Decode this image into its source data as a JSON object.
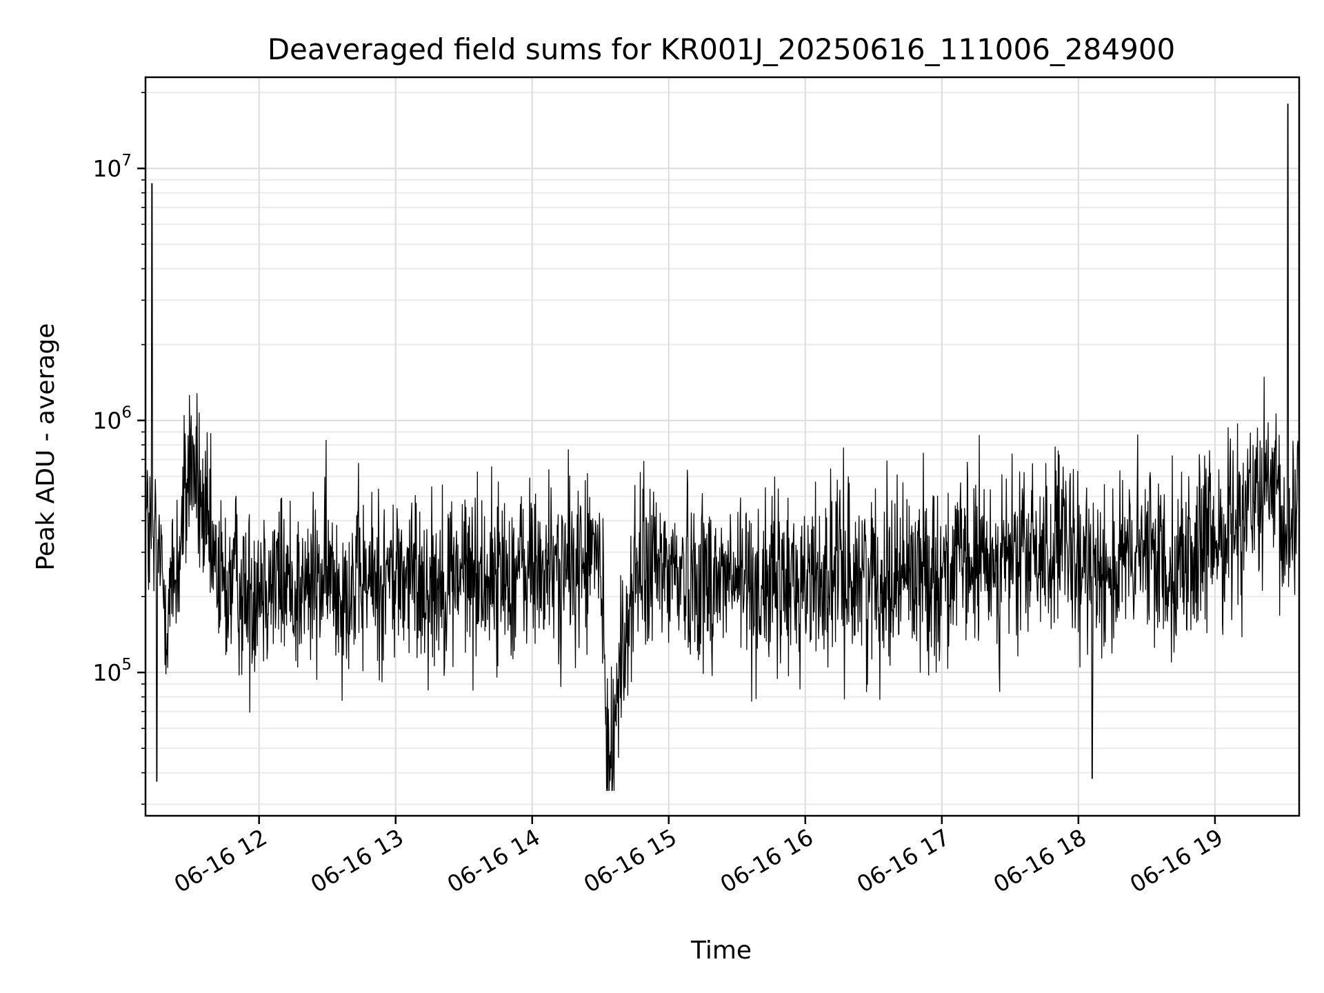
{
  "chart_data": {
    "type": "line",
    "title": "Deaveraged field sums for KR001J_20250616_111006_284900",
    "xlabel": "Time",
    "ylabel": "Peak ADU - average",
    "xlim": [
      "2025-06-16T11:10:06",
      "2025-06-16T19:37:00"
    ],
    "ylim": [
      27000,
      23000000
    ],
    "y_scale": "log",
    "grid": true,
    "x_tick_labels": [
      "06-16 12",
      "06-16 13",
      "06-16 14",
      "06-16 15",
      "06-16 16",
      "06-16 17",
      "06-16 18",
      "06-16 19"
    ],
    "x_ticks": [
      "2025-06-16T12:00:00",
      "2025-06-16T13:00:00",
      "2025-06-16T14:00:00",
      "2025-06-16T15:00:00",
      "2025-06-16T16:00:00",
      "2025-06-16T17:00:00",
      "2025-06-16T18:00:00",
      "2025-06-16T19:00:00"
    ],
    "y_ticks": [
      {
        "value": 100000,
        "base": "10",
        "exp": "5"
      },
      {
        "value": 1000000,
        "base": "10",
        "exp": "6"
      },
      {
        "value": 10000000,
        "base": "10",
        "exp": "7"
      }
    ],
    "series": [
      {
        "color": "#000000",
        "x": [
          "2025-06-16T11:10:06",
          "2025-06-16T11:13:00",
          "2025-06-16T11:15:00",
          "2025-06-16T11:16:00",
          "2025-06-16T11:18:00",
          "2025-06-16T11:20:00",
          "2025-06-16T11:25:00",
          "2025-06-16T11:30:00",
          "2025-06-16T11:35:00",
          "2025-06-16T11:40:00",
          "2025-06-16T11:45:00",
          "2025-06-16T11:50:00",
          "2025-06-16T11:55:00",
          "2025-06-16T12:00:00",
          "2025-06-16T12:10:00",
          "2025-06-16T12:20:00",
          "2025-06-16T12:30:00",
          "2025-06-16T12:40:00",
          "2025-06-16T12:50:00",
          "2025-06-16T13:00:00",
          "2025-06-16T13:15:00",
          "2025-06-16T13:30:00",
          "2025-06-16T13:45:00",
          "2025-06-16T14:00:00",
          "2025-06-16T14:15:00",
          "2025-06-16T14:30:00",
          "2025-06-16T14:33:00",
          "2025-06-16T14:45:00",
          "2025-06-16T15:00:00",
          "2025-06-16T15:15:00",
          "2025-06-16T15:30:00",
          "2025-06-16T15:45:00",
          "2025-06-16T16:00:00",
          "2025-06-16T16:15:00",
          "2025-06-16T16:30:00",
          "2025-06-16T16:45:00",
          "2025-06-16T17:00:00",
          "2025-06-16T17:15:00",
          "2025-06-16T17:30:00",
          "2025-06-16T17:45:00",
          "2025-06-16T17:55:00",
          "2025-06-16T18:00:00",
          "2025-06-16T18:06:00",
          "2025-06-16T18:15:00",
          "2025-06-16T18:30:00",
          "2025-06-16T18:45:00",
          "2025-06-16T19:00:00",
          "2025-06-16T19:15:00",
          "2025-06-16T19:25:00",
          "2025-06-16T19:32:00",
          "2025-06-16T19:37:00"
        ],
        "y": [
          420000,
          8700000,
          37000,
          300000,
          220000,
          180000,
          300000,
          750000,
          420000,
          260000,
          210000,
          240000,
          190000,
          250000,
          230000,
          210000,
          240000,
          220000,
          230000,
          240000,
          230000,
          250000,
          240000,
          260000,
          250000,
          240000,
          42000,
          250000,
          260000,
          240000,
          230000,
          220000,
          230000,
          250000,
          240000,
          260000,
          250000,
          270000,
          280000,
          300000,
          320000,
          220000,
          38000,
          250000,
          300000,
          270000,
          330000,
          480000,
          500000,
          18000000,
          650000
        ],
        "noise_amplitude_log10": 0.35
      }
    ]
  }
}
